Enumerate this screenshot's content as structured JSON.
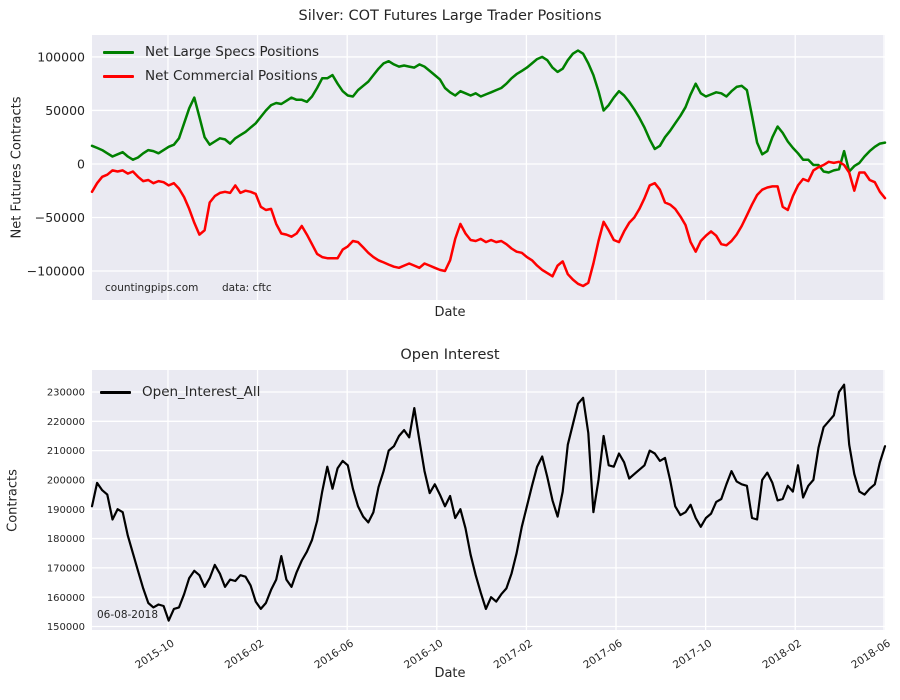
{
  "style": {
    "plot_bg": "#eaeaf2",
    "grid_color": "#ffffff",
    "text_color": "#262626",
    "figure_bg": "#ffffff"
  },
  "chart_data": [
    {
      "type": "line",
      "title": "Silver: COT Futures Large Trader Positions",
      "xlabel": "Date",
      "ylabel": "Net Futures Contracts",
      "x_range": [
        "2015-06",
        "2018-06-08"
      ],
      "x_frequency": "weekly",
      "ylim": [
        -127100,
        120500
      ],
      "grid": true,
      "legend_position": "upper left",
      "yticks": [
        100000,
        50000,
        0,
        -50000,
        -100000
      ],
      "x_tick_labels": [],
      "annotations": [
        {
          "text": "countingpips.com"
        },
        {
          "text": "data: cftc"
        }
      ],
      "series": [
        {
          "name": "Net Large Specs Positions",
          "color": "#008000",
          "values": [
            17000,
            15000,
            13000,
            10000,
            7000,
            9000,
            11000,
            7000,
            4000,
            6000,
            10000,
            13000,
            12000,
            10000,
            13000,
            16000,
            18000,
            24000,
            38000,
            52000,
            62000,
            44000,
            25000,
            18000,
            21000,
            24000,
            23000,
            19000,
            24000,
            27000,
            30000,
            34000,
            38000,
            44000,
            50000,
            55000,
            57000,
            56000,
            59000,
            62000,
            60000,
            60000,
            58000,
            63000,
            71000,
            80000,
            80000,
            83000,
            75000,
            68000,
            64000,
            63000,
            69000,
            73000,
            77000,
            83000,
            89000,
            94000,
            96000,
            93000,
            91000,
            92000,
            91000,
            90000,
            93000,
            91000,
            87000,
            83000,
            79000,
            71000,
            67000,
            64000,
            68000,
            66000,
            64000,
            66000,
            63000,
            65000,
            67000,
            69000,
            71000,
            75000,
            80000,
            84000,
            87000,
            90000,
            94000,
            98000,
            100000,
            97000,
            90000,
            86000,
            89000,
            97000,
            103000,
            106000,
            103000,
            94000,
            83000,
            68000,
            50000,
            55000,
            62000,
            68000,
            64000,
            58000,
            51000,
            43000,
            34000,
            23000,
            14000,
            17000,
            25000,
            31000,
            38000,
            45000,
            53000,
            65000,
            75000,
            66000,
            63000,
            65000,
            67000,
            66000,
            63000,
            68000,
            72000,
            73000,
            69000,
            45000,
            20000,
            9000,
            12000,
            25000,
            35000,
            29000,
            21000,
            15000,
            10000,
            4000,
            4000,
            -1000,
            -1000,
            -7000,
            -8000,
            -6000,
            -5000,
            12000,
            -7000,
            -2000,
            1000,
            7000,
            12000,
            16000,
            19000,
            20000
          ]
        },
        {
          "name": "Net Commercial Positions",
          "color": "#ff0000",
          "values": [
            -26000,
            -18000,
            -12000,
            -10000,
            -6000,
            -7000,
            -6000,
            -9000,
            -7000,
            -12000,
            -16000,
            -15000,
            -18000,
            -16000,
            -17000,
            -20000,
            -18000,
            -23000,
            -31000,
            -42000,
            -55000,
            -66000,
            -62000,
            -36000,
            -30000,
            -27000,
            -26000,
            -27000,
            -20000,
            -27000,
            -25000,
            -26000,
            -28000,
            -40000,
            -43000,
            -42000,
            -56000,
            -65000,
            -66000,
            -68000,
            -65000,
            -58000,
            -66000,
            -75000,
            -84000,
            -87000,
            -88000,
            -88000,
            -88000,
            -80000,
            -77000,
            -72000,
            -73000,
            -78000,
            -83000,
            -87000,
            -90000,
            -92000,
            -94000,
            -96000,
            -97000,
            -95000,
            -93000,
            -95000,
            -97000,
            -93000,
            -95000,
            -97000,
            -99000,
            -100000,
            -90000,
            -70000,
            -56000,
            -65000,
            -71000,
            -72000,
            -70000,
            -73000,
            -71000,
            -73000,
            -72000,
            -75000,
            -79000,
            -82000,
            -83000,
            -87000,
            -90000,
            -95000,
            -99000,
            -102000,
            -105000,
            -95000,
            -91000,
            -103000,
            -108000,
            -112000,
            -114000,
            -111000,
            -93000,
            -72000,
            -54000,
            -62000,
            -71000,
            -73000,
            -63000,
            -55000,
            -50000,
            -42000,
            -32000,
            -20000,
            -18000,
            -24000,
            -36000,
            -38000,
            -42000,
            -49000,
            -57000,
            -73000,
            -82000,
            -72000,
            -67000,
            -63000,
            -67000,
            -75000,
            -76000,
            -72000,
            -66000,
            -58000,
            -48000,
            -38000,
            -29000,
            -24000,
            -22000,
            -21000,
            -21000,
            -40000,
            -43000,
            -30000,
            -20000,
            -14000,
            -16000,
            -6000,
            -3000,
            -1000,
            2000,
            1000,
            2000,
            -1000,
            -8000,
            -25000,
            -8000,
            -8000,
            -15000,
            -17000,
            -26000,
            -32000
          ]
        }
      ]
    },
    {
      "type": "line",
      "title": "Open Interest",
      "xlabel": "Date",
      "ylabel": "Contracts",
      "x_range": [
        "2015-06",
        "2018-06-08"
      ],
      "x_frequency": "weekly",
      "ylim": [
        148800,
        237500
      ],
      "grid": true,
      "legend_position": "upper left",
      "yticks": [
        230000,
        220000,
        210000,
        200000,
        190000,
        180000,
        170000,
        160000,
        150000
      ],
      "x_tick_labels": [
        "2015-10",
        "2016-02",
        "2016-06",
        "2016-10",
        "2017-02",
        "2017-06",
        "2017-10",
        "2018-02",
        "2018-06"
      ],
      "annotations": [
        {
          "text": "06-08-2018"
        }
      ],
      "series": [
        {
          "name": "Open_Interest_All",
          "color": "#000000",
          "values": [
            191000,
            199000,
            196500,
            195000,
            186500,
            190000,
            189000,
            181000,
            175000,
            169000,
            163000,
            158000,
            156500,
            157500,
            157000,
            152000,
            156000,
            156500,
            161000,
            166500,
            169000,
            167500,
            163500,
            166500,
            171000,
            168000,
            163500,
            166000,
            165500,
            167500,
            167000,
            164000,
            158500,
            156000,
            158000,
            162500,
            166000,
            174000,
            166000,
            163500,
            168500,
            172500,
            175500,
            179500,
            186000,
            196000,
            204500,
            197000,
            204000,
            206500,
            205000,
            197000,
            191000,
            187500,
            185500,
            189000,
            197500,
            203000,
            210000,
            211500,
            215000,
            217000,
            214500,
            224500,
            213500,
            203000,
            195500,
            198500,
            195000,
            191000,
            194500,
            187000,
            190000,
            183500,
            174500,
            167500,
            161500,
            156000,
            160000,
            158500,
            161000,
            163000,
            168000,
            175000,
            184000,
            191000,
            198000,
            204500,
            208000,
            201000,
            193000,
            187500,
            196000,
            212000,
            219000,
            226000,
            228000,
            216000,
            189000,
            200000,
            215000,
            205000,
            204500,
            209000,
            206000,
            200500,
            202000,
            203500,
            205000,
            210000,
            209000,
            206500,
            207500,
            200000,
            191000,
            188000,
            189000,
            191500,
            187000,
            184000,
            187000,
            188500,
            192500,
            193500,
            198500,
            203000,
            199500,
            198500,
            198000,
            187000,
            186500,
            200000,
            202500,
            199000,
            193000,
            193500,
            198000,
            196000,
            205000,
            194000,
            198000,
            200000,
            211000,
            218000,
            220000,
            222000,
            230000,
            232500,
            212000,
            202000,
            196000,
            195000,
            197000,
            198500,
            206000,
            211500
          ]
        }
      ]
    }
  ]
}
